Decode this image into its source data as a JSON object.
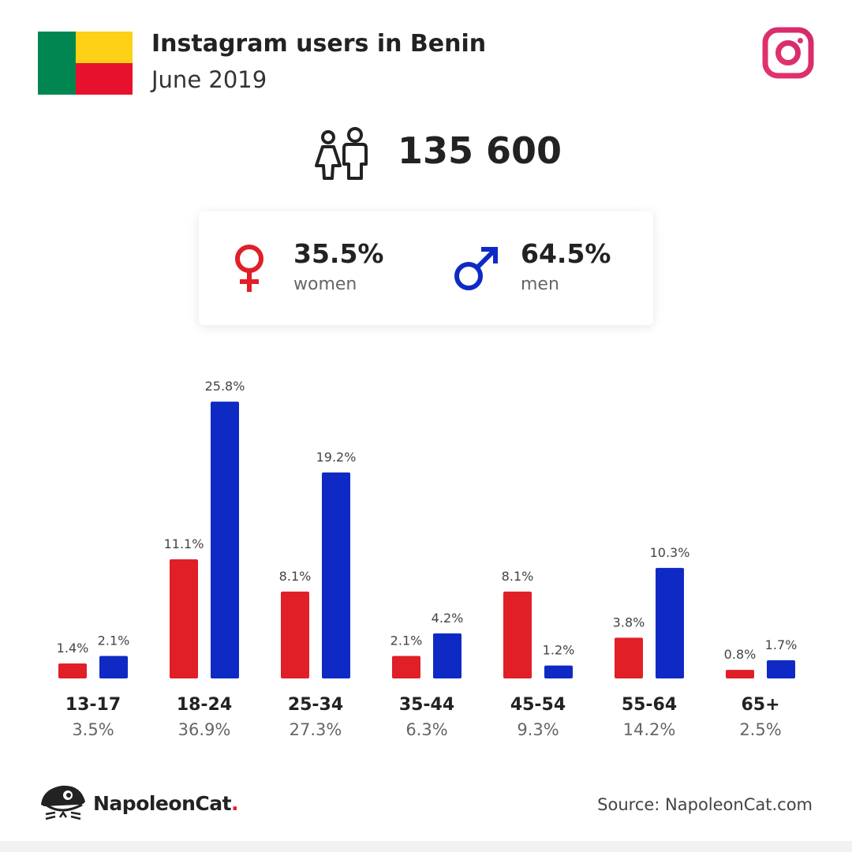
{
  "header": {
    "title": "Instagram users in Benin",
    "subtitle": "June 2019",
    "flag_colors": [
      "#008751",
      "#FCD116",
      "#E8112D"
    ],
    "social_icon": "instagram-icon"
  },
  "total_users": "135 600",
  "gender": {
    "women": {
      "percent": "35.5%",
      "label": "women",
      "color": "#E01F27",
      "icon": "female-symbol-icon"
    },
    "men": {
      "percent": "64.5%",
      "label": "men",
      "color": "#0F2AC4",
      "icon": "male-symbol-icon"
    }
  },
  "chart_data": {
    "type": "bar",
    "categories": [
      "13-17",
      "18-24",
      "25-34",
      "35-44",
      "45-54",
      "55-64",
      "65+"
    ],
    "category_totals": [
      "3.5%",
      "36.9%",
      "27.3%",
      "6.3%",
      "9.3%",
      "14.2%",
      "2.5%"
    ],
    "series": [
      {
        "color": "#E01F27",
        "values": [
          1.4,
          11.1,
          8.1,
          2.1,
          8.1,
          3.8,
          0.8
        ],
        "labels": [
          "1.4%",
          "11.1%",
          "8.1%",
          "2.1%",
          "8.1%",
          "3.8%",
          "0.8%"
        ]
      },
      {
        "color": "#0F2AC4",
        "values": [
          2.1,
          25.8,
          19.2,
          4.2,
          1.2,
          10.3,
          1.7
        ],
        "labels": [
          "2.1%",
          "25.8%",
          "19.2%",
          "4.2%",
          "1.2%",
          "10.3%",
          "1.7%"
        ]
      }
    ],
    "grid": false
  },
  "footer": {
    "brand": "NapoleonCat",
    "brand_dot": ".",
    "source": "Source: NapoleonCat.com",
    "logo_icon": "napoleoncat-logo-icon"
  }
}
